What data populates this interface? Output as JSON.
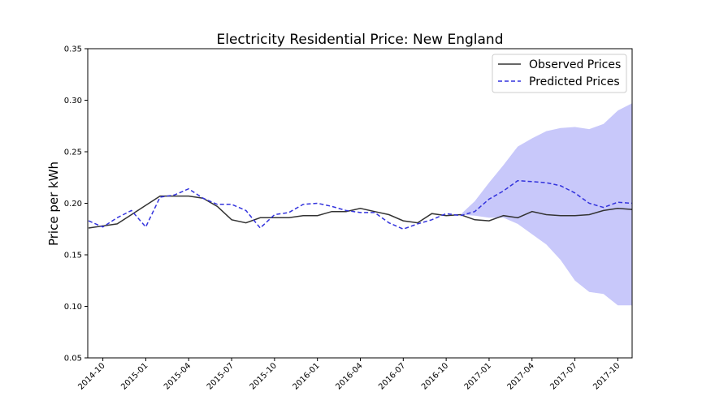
{
  "chart_data": {
    "type": "line",
    "title": "Electricity Residential Price: New England",
    "ylabel": "Price per kWh",
    "xlabel": "",
    "x_start": "2014-09",
    "ylim": [
      0.05,
      0.35
    ],
    "yticks": [
      "0.05",
      "0.10",
      "0.15",
      "0.20",
      "0.25",
      "0.30",
      "0.35"
    ],
    "xticks": [
      "2014-10",
      "2015-01",
      "2015-04",
      "2015-07",
      "2015-10",
      "2016-01",
      "2016-04",
      "2016-07",
      "2016-10",
      "2017-01",
      "2017-04",
      "2017-07",
      "2017-10"
    ],
    "grid": false,
    "legend_position": "top-right",
    "series": [
      {
        "name": "Observed Prices",
        "color": "#333333",
        "style": "solid",
        "values": [
          0.176,
          0.178,
          0.18,
          0.189,
          0.198,
          0.207,
          0.207,
          0.207,
          0.205,
          0.197,
          0.184,
          0.181,
          0.186,
          0.186,
          0.186,
          0.188,
          0.188,
          0.192,
          0.192,
          0.195,
          0.192,
          0.189,
          0.183,
          0.181,
          0.19,
          0.188,
          0.189,
          0.184,
          0.183,
          0.188,
          0.186,
          0.192,
          0.189,
          0.188,
          0.188,
          0.189,
          0.193,
          0.195,
          0.194
        ]
      },
      {
        "name": "Predicted Prices",
        "color": "#3333dd",
        "style": "dashed",
        "values": [
          0.183,
          0.177,
          0.186,
          0.193,
          0.177,
          0.206,
          0.208,
          0.214,
          0.205,
          0.199,
          0.199,
          0.193,
          0.176,
          0.189,
          0.191,
          0.199,
          0.2,
          0.197,
          0.193,
          0.191,
          0.191,
          0.181,
          0.175,
          0.18,
          0.184,
          0.19,
          0.188,
          0.192,
          0.204,
          0.212,
          0.222,
          0.221,
          0.22,
          0.217,
          0.21,
          0.2,
          0.196,
          0.201,
          0.2
        ]
      }
    ],
    "confidence_band": {
      "color": "#c8c8fa",
      "start_index": 26,
      "upper": [
        0.189,
        0.202,
        0.22,
        0.237,
        0.255,
        0.263,
        0.27,
        0.273,
        0.274,
        0.272,
        0.277,
        0.29,
        0.297
      ],
      "lower": [
        0.189,
        0.188,
        0.186,
        0.186,
        0.18,
        0.17,
        0.16,
        0.145,
        0.125,
        0.114,
        0.112,
        0.101,
        0.101
      ]
    }
  }
}
